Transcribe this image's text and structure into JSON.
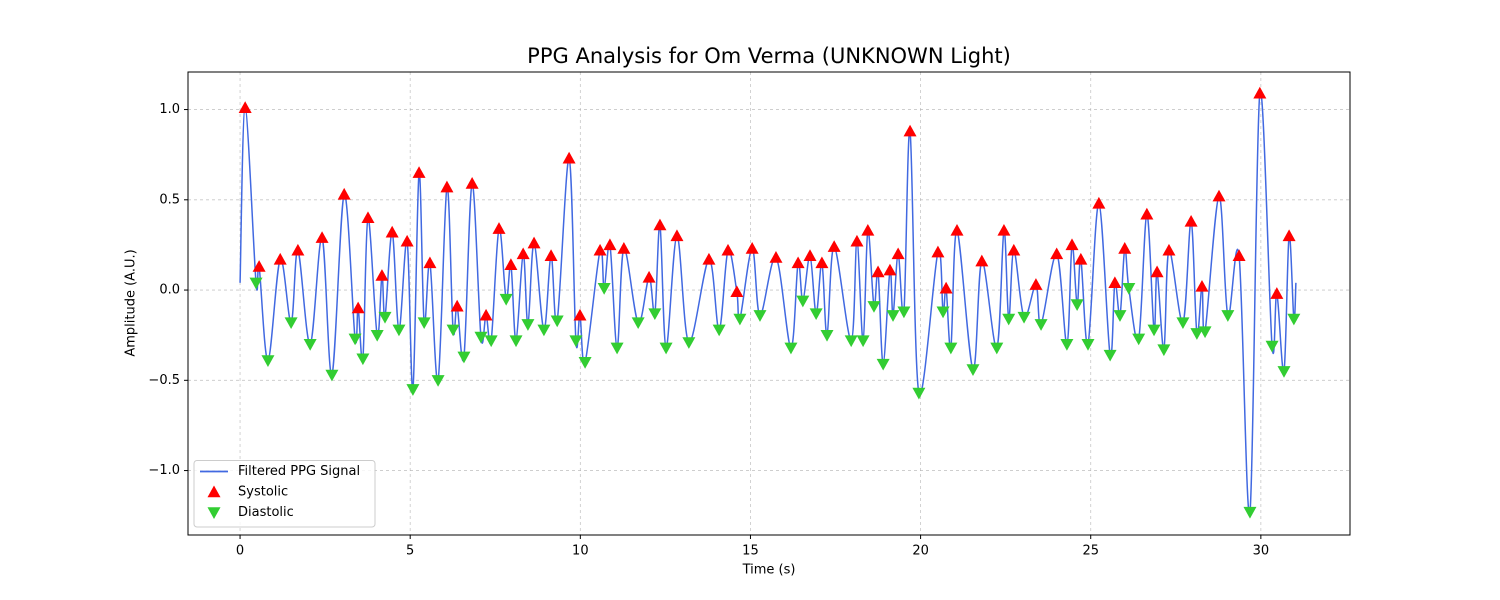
{
  "chart_data": {
    "type": "line",
    "title": "PPG Analysis for Om Verma (UNKNOWN Light)",
    "x_label": "Time (s)",
    "y_label": "Amplitude (A.U.)",
    "xlim": [
      -1.53,
      32.62
    ],
    "ylim": [
      -1.357,
      1.208
    ],
    "xticks": [
      0,
      5,
      10,
      15,
      20,
      25,
      30
    ],
    "yticks": [
      {
        "value": -1,
        "label": "−1.0"
      },
      {
        "value": -0.5,
        "label": "−0.5"
      },
      {
        "value": 0,
        "label": "0.0"
      },
      0.5,
      {
        "value": 1,
        "label": "1.0"
      }
    ],
    "grid": true,
    "legend": "lower left",
    "series": [
      {
        "name": "Filtered PPG Signal",
        "color": "#4169e1",
        "marker": "line",
        "x": [
          0.0,
          0.15,
          0.47,
          0.56,
          0.82,
          1.18,
          1.5,
          1.7,
          2.06,
          2.41,
          2.7,
          3.06,
          3.38,
          3.47,
          3.61,
          3.76,
          4.03,
          4.17,
          4.26,
          4.47,
          4.67,
          4.91,
          5.08,
          5.26,
          5.41,
          5.58,
          5.82,
          6.08,
          6.26,
          6.38,
          6.58,
          6.82,
          7.08,
          7.23,
          7.38,
          7.61,
          7.82,
          7.96,
          8.11,
          8.32,
          8.46,
          8.64,
          8.93,
          9.14,
          9.32,
          9.67,
          9.87,
          9.99,
          10.14,
          10.58,
          10.7,
          10.87,
          11.08,
          11.28,
          11.7,
          12.02,
          12.19,
          12.34,
          12.52,
          12.84,
          13.19,
          13.78,
          14.08,
          14.34,
          14.6,
          14.69,
          15.05,
          15.28,
          15.75,
          16.19,
          16.4,
          16.54,
          16.75,
          16.93,
          17.1,
          17.25,
          17.46,
          17.96,
          18.13,
          18.31,
          18.45,
          18.63,
          18.75,
          18.9,
          19.1,
          19.19,
          19.34,
          19.51,
          19.69,
          19.95,
          20.51,
          20.66,
          20.75,
          20.89,
          21.07,
          21.54,
          21.8,
          22.24,
          22.45,
          22.59,
          22.74,
          23.04,
          23.39,
          23.54,
          24.0,
          24.3,
          24.45,
          24.6,
          24.71,
          24.92,
          25.24,
          25.57,
          25.71,
          25.86,
          26.0,
          26.12,
          26.41,
          26.65,
          26.86,
          26.95,
          27.15,
          27.3,
          27.71,
          27.95,
          28.12,
          28.27,
          28.36,
          28.77,
          29.03,
          29.36,
          29.68,
          29.97,
          30.33,
          30.47,
          30.68,
          30.83,
          30.97,
          31.03
        ],
        "values": [
          0.04,
          1.01,
          0.04,
          0.13,
          -0.39,
          0.17,
          -0.18,
          0.22,
          -0.3,
          0.29,
          -0.47,
          0.53,
          -0.27,
          -0.1,
          -0.38,
          0.4,
          -0.25,
          0.08,
          -0.15,
          0.32,
          -0.22,
          0.27,
          -0.55,
          0.65,
          -0.18,
          0.15,
          -0.5,
          0.57,
          -0.22,
          -0.09,
          -0.37,
          0.59,
          -0.26,
          -0.14,
          -0.28,
          0.34,
          -0.05,
          0.14,
          -0.28,
          0.2,
          -0.19,
          0.26,
          -0.22,
          0.19,
          -0.17,
          0.73,
          -0.28,
          -0.14,
          -0.4,
          0.22,
          0.01,
          0.25,
          -0.32,
          0.23,
          -0.18,
          0.07,
          -0.13,
          0.36,
          -0.32,
          0.3,
          -0.29,
          0.17,
          -0.22,
          0.22,
          -0.01,
          -0.16,
          0.23,
          -0.14,
          0.18,
          -0.32,
          0.15,
          -0.06,
          0.19,
          -0.13,
          0.15,
          -0.25,
          0.24,
          -0.28,
          0.27,
          -0.28,
          0.33,
          -0.09,
          0.1,
          -0.41,
          0.11,
          -0.14,
          0.2,
          -0.12,
          0.88,
          -0.57,
          0.21,
          -0.12,
          0.01,
          -0.32,
          0.33,
          -0.44,
          0.16,
          -0.32,
          0.33,
          -0.16,
          0.22,
          -0.15,
          0.03,
          -0.19,
          0.2,
          -0.3,
          0.25,
          -0.08,
          0.17,
          -0.3,
          0.48,
          -0.36,
          0.04,
          -0.14,
          0.23,
          0.01,
          -0.27,
          0.42,
          -0.22,
          0.1,
          -0.33,
          0.22,
          -0.18,
          0.38,
          -0.24,
          0.02,
          -0.23,
          0.52,
          -0.14,
          0.19,
          -1.23,
          1.09,
          -0.31,
          -0.02,
          -0.45,
          0.3,
          -0.16,
          0.04
        ]
      },
      {
        "name": "Systolic",
        "color": "#ff0000",
        "marker": "triangle-up",
        "x": [
          0.15,
          0.56,
          1.18,
          1.7,
          2.41,
          3.06,
          3.47,
          3.76,
          4.17,
          4.47,
          4.91,
          5.26,
          5.58,
          6.08,
          6.38,
          6.82,
          7.23,
          7.61,
          7.96,
          8.32,
          8.64,
          9.14,
          9.67,
          9.99,
          10.58,
          10.87,
          11.28,
          12.02,
          12.34,
          12.84,
          13.78,
          14.34,
          14.6,
          15.05,
          15.75,
          16.4,
          16.75,
          17.1,
          17.46,
          18.13,
          18.45,
          18.75,
          19.1,
          19.34,
          19.69,
          20.51,
          20.75,
          21.07,
          21.8,
          22.45,
          22.74,
          23.39,
          24.0,
          24.45,
          24.71,
          25.24,
          25.71,
          26.0,
          26.65,
          26.95,
          27.3,
          27.95,
          28.27,
          28.77,
          29.36,
          29.97,
          30.47,
          30.83
        ],
        "values": [
          1.01,
          0.13,
          0.17,
          0.22,
          0.29,
          0.53,
          -0.1,
          0.4,
          0.08,
          0.32,
          0.27,
          0.65,
          0.15,
          0.57,
          -0.09,
          0.59,
          -0.14,
          0.34,
          0.14,
          0.2,
          0.26,
          0.19,
          0.73,
          -0.14,
          0.22,
          0.25,
          0.23,
          0.07,
          0.36,
          0.3,
          0.17,
          0.22,
          -0.01,
          0.23,
          0.18,
          0.15,
          0.19,
          0.15,
          0.24,
          0.27,
          0.33,
          0.1,
          0.11,
          0.2,
          0.88,
          0.21,
          0.01,
          0.33,
          0.16,
          0.33,
          0.22,
          0.03,
          0.2,
          0.25,
          0.17,
          0.48,
          0.04,
          0.23,
          0.42,
          0.1,
          0.22,
          0.38,
          0.02,
          0.52,
          0.19,
          1.09,
          -0.02,
          0.3
        ]
      },
      {
        "name": "Diastolic",
        "color": "#32cd32",
        "marker": "triangle-down",
        "x": [
          0.47,
          0.82,
          1.5,
          2.06,
          2.7,
          3.38,
          3.61,
          4.03,
          4.26,
          4.67,
          5.08,
          5.41,
          5.82,
          6.26,
          6.58,
          7.08,
          7.38,
          7.82,
          8.11,
          8.46,
          8.93,
          9.32,
          9.87,
          10.14,
          10.7,
          11.08,
          11.7,
          12.19,
          12.52,
          13.19,
          14.08,
          14.69,
          15.28,
          16.19,
          16.54,
          16.93,
          17.25,
          17.96,
          18.31,
          18.63,
          18.9,
          19.19,
          19.51,
          19.95,
          20.66,
          20.89,
          21.54,
          22.24,
          22.59,
          23.04,
          23.54,
          24.3,
          24.6,
          24.92,
          25.57,
          25.86,
          26.12,
          26.41,
          26.86,
          27.15,
          27.71,
          28.12,
          28.36,
          29.03,
          29.68,
          30.33,
          30.68,
          30.97
        ],
        "values": [
          0.04,
          -0.39,
          -0.18,
          -0.3,
          -0.47,
          -0.27,
          -0.38,
          -0.25,
          -0.15,
          -0.22,
          -0.55,
          -0.18,
          -0.5,
          -0.22,
          -0.37,
          -0.26,
          -0.28,
          -0.05,
          -0.28,
          -0.19,
          -0.22,
          -0.17,
          -0.28,
          -0.4,
          0.01,
          -0.32,
          -0.18,
          -0.13,
          -0.32,
          -0.29,
          -0.22,
          -0.16,
          -0.14,
          -0.32,
          -0.06,
          -0.13,
          -0.25,
          -0.28,
          -0.28,
          -0.09,
          -0.41,
          -0.14,
          -0.12,
          -0.57,
          -0.12,
          -0.32,
          -0.44,
          -0.32,
          -0.16,
          -0.15,
          -0.19,
          -0.3,
          -0.08,
          -0.3,
          -0.36,
          -0.14,
          0.01,
          -0.27,
          -0.22,
          -0.33,
          -0.18,
          -0.24,
          -0.23,
          -0.14,
          -1.23,
          -0.31,
          -0.45,
          -0.16
        ]
      }
    ]
  }
}
